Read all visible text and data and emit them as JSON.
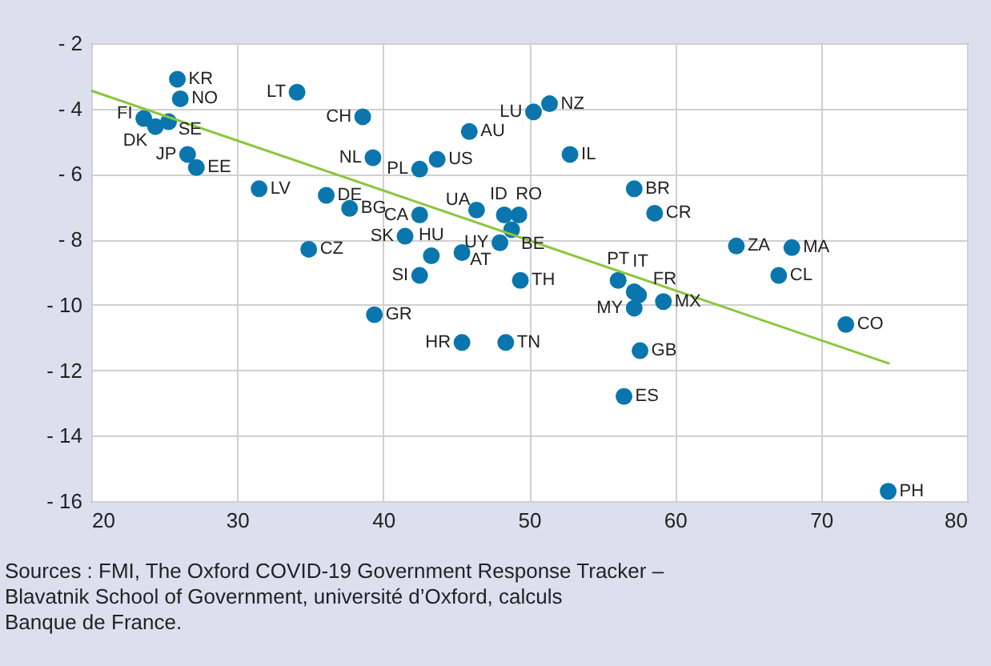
{
  "chart_data": {
    "type": "scatter",
    "xlim": [
      20,
      80
    ],
    "xticks": [
      20,
      30,
      40,
      50,
      60,
      70,
      80
    ],
    "ylim": [
      -16,
      -2
    ],
    "yticks": [
      {
        "value": -2,
        "label": "- 2"
      },
      {
        "value": -4,
        "label": "- 4"
      },
      {
        "value": -6,
        "label": "- 6"
      },
      {
        "value": -8,
        "label": "- 8"
      },
      {
        "value": -10,
        "label": "- 10"
      },
      {
        "value": -12,
        "label": "- 12"
      },
      {
        "value": -14,
        "label": "- 14"
      },
      {
        "value": -16,
        "label": "- 16"
      }
    ],
    "grid": true,
    "series": [
      {
        "marker": "circle",
        "color": "#0a76ad",
        "x": [
          25.9,
          26.1,
          23.6,
          24.4,
          25.3,
          26.6,
          27.2,
          34.1,
          31.5,
          36.1,
          37.7,
          34.9,
          38.6,
          39.3,
          45.9,
          43.7,
          42.5,
          50.3,
          51.4,
          52.8,
          42.5,
          46.4,
          48.3,
          49.3,
          48.8,
          41.5,
          43.3,
          48.0,
          45.4,
          42.5,
          49.4,
          39.4,
          45.4,
          48.4,
          57.2,
          58.6,
          56.1,
          57.2,
          57.5,
          57.2,
          59.2,
          57.6,
          56.5,
          64.2,
          68.0,
          67.1,
          71.7,
          74.6
        ],
        "values": [
          -3.1,
          -3.7,
          -4.3,
          -4.55,
          -4.4,
          -5.4,
          -5.8,
          -3.5,
          -6.45,
          -6.65,
          -7.05,
          -8.3,
          -4.25,
          -5.5,
          -4.7,
          -5.55,
          -5.85,
          -4.1,
          -3.85,
          -5.4,
          -7.25,
          -7.1,
          -7.25,
          -7.25,
          -7.7,
          -7.9,
          -8.5,
          -8.1,
          -8.4,
          -9.1,
          -9.25,
          -10.3,
          -11.15,
          -11.15,
          -6.45,
          -7.2,
          -9.25,
          -9.6,
          -9.7,
          -10.1,
          -9.9,
          -11.4,
          -12.8,
          -8.2,
          -8.25,
          -9.1,
          -10.6,
          -15.7
        ]
      },
      {
        "type": "line",
        "color": "#8dc63f",
        "x": [
          20,
          74.7
        ],
        "values": [
          -3.45,
          -11.8
        ]
      }
    ],
    "annotations": [
      {
        "text": "KR",
        "x": 25.9,
        "y": -3.1
      },
      {
        "text": "NO",
        "x": 26.1,
        "y": -3.7
      },
      {
        "text": "FI",
        "x": 23.6,
        "y": -4.3
      },
      {
        "text": "DK",
        "x": 24.4,
        "y": -4.55
      },
      {
        "text": "SE",
        "x": 25.3,
        "y": -4.4
      },
      {
        "text": "JP",
        "x": 26.6,
        "y": -5.4
      },
      {
        "text": "EE",
        "x": 27.2,
        "y": -5.8
      },
      {
        "text": "LT",
        "x": 34.1,
        "y": -3.5
      },
      {
        "text": "LV",
        "x": 31.5,
        "y": -6.45
      },
      {
        "text": "DE",
        "x": 36.1,
        "y": -6.65
      },
      {
        "text": "BG",
        "x": 37.7,
        "y": -7.05
      },
      {
        "text": "CZ",
        "x": 34.9,
        "y": -8.3
      },
      {
        "text": "CH",
        "x": 38.6,
        "y": -4.25
      },
      {
        "text": "NL",
        "x": 39.3,
        "y": -5.5
      },
      {
        "text": "AU",
        "x": 45.9,
        "y": -4.7
      },
      {
        "text": "US",
        "x": 43.7,
        "y": -5.55
      },
      {
        "text": "PL",
        "x": 42.5,
        "y": -5.85
      },
      {
        "text": "LU",
        "x": 50.3,
        "y": -4.1
      },
      {
        "text": "NZ",
        "x": 51.4,
        "y": -3.85
      },
      {
        "text": "IL",
        "x": 52.8,
        "y": -5.4
      },
      {
        "text": "CA",
        "x": 42.5,
        "y": -7.25
      },
      {
        "text": "UA",
        "x": 46.4,
        "y": -7.1
      },
      {
        "text": "ID",
        "x": 48.3,
        "y": -7.25
      },
      {
        "text": "RO",
        "x": 49.3,
        "y": -7.25
      },
      {
        "text": "BE",
        "x": 48.8,
        "y": -7.7
      },
      {
        "text": "SK",
        "x": 41.5,
        "y": -7.9
      },
      {
        "text": "HU",
        "x": 43.3,
        "y": -8.5
      },
      {
        "text": "UY",
        "x": 48.0,
        "y": -8.1
      },
      {
        "text": "AT",
        "x": 45.4,
        "y": -8.4
      },
      {
        "text": "SI",
        "x": 42.5,
        "y": -9.1
      },
      {
        "text": "TH",
        "x": 49.4,
        "y": -9.25
      },
      {
        "text": "GR",
        "x": 39.4,
        "y": -10.3
      },
      {
        "text": "HR",
        "x": 45.4,
        "y": -11.15
      },
      {
        "text": "TN",
        "x": 48.4,
        "y": -11.15
      },
      {
        "text": "BR",
        "x": 57.2,
        "y": -6.45
      },
      {
        "text": "CR",
        "x": 58.6,
        "y": -7.2
      },
      {
        "text": "PT",
        "x": 56.1,
        "y": -9.25
      },
      {
        "text": "IT",
        "x": 57.2,
        "y": -9.6
      },
      {
        "text": "FR",
        "x": 57.5,
        "y": -9.7
      },
      {
        "text": "MY",
        "x": 57.2,
        "y": -10.1
      },
      {
        "text": "MX",
        "x": 59.2,
        "y": -9.9
      },
      {
        "text": "GB",
        "x": 57.6,
        "y": -11.4
      },
      {
        "text": "ES",
        "x": 56.5,
        "y": -12.8
      },
      {
        "text": "ZA",
        "x": 64.2,
        "y": -8.2
      },
      {
        "text": "MA",
        "x": 68.0,
        "y": -8.25
      },
      {
        "text": "CL",
        "x": 67.1,
        "y": -9.1
      },
      {
        "text": "CO",
        "x": 71.7,
        "y": -10.6
      },
      {
        "text": "PH",
        "x": 74.6,
        "y": -15.7
      },
      "Sources : FMI, The Oxford COVID-19 Government Response Tracker – Blavatnik School of Government, université d’Oxford, calculs Banque de France."
    ]
  }
}
